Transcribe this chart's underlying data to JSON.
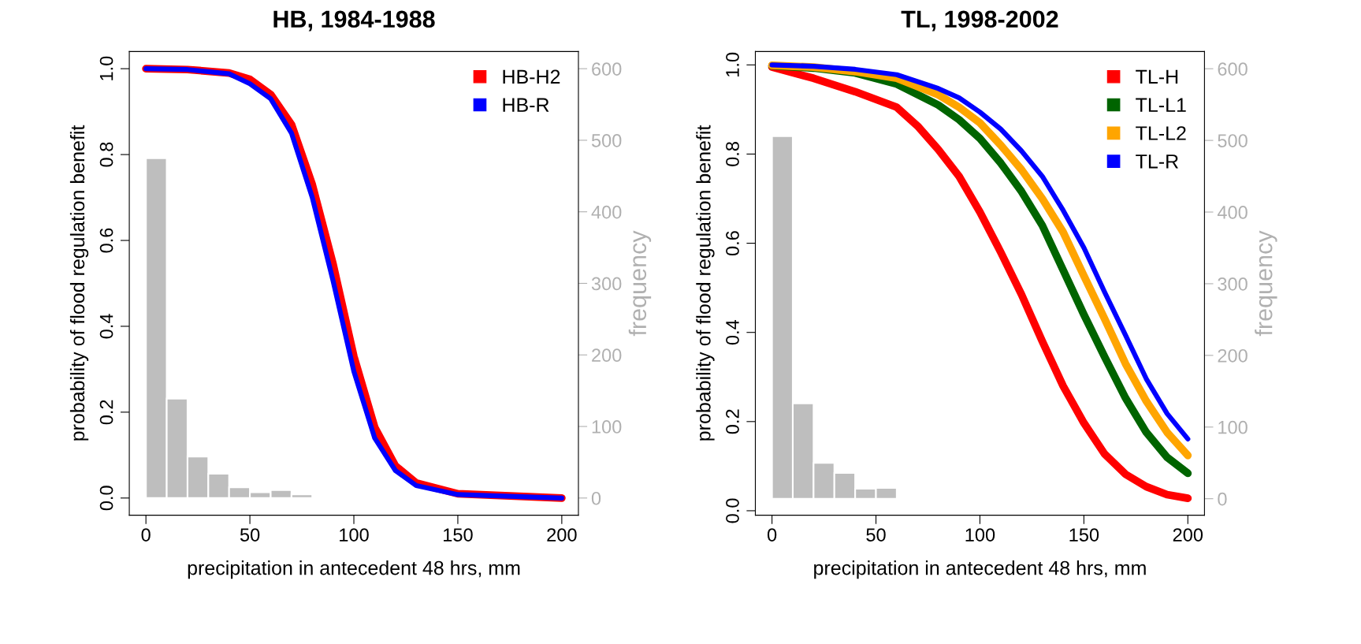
{
  "chart_data": [
    {
      "type": "line",
      "title": "HB, 1984-1988",
      "xlabel": "precipitation in antecedent 48 hrs, mm",
      "ylabel": "probability of flood regulation benefit",
      "y2label": "frequency",
      "xlim": [
        -8,
        208
      ],
      "xticks": [
        0,
        50,
        100,
        150,
        200
      ],
      "ylim": [
        -0.04,
        1.04
      ],
      "yticks": [
        {
          "value": 0,
          "label": "0.0"
        },
        {
          "value": 0.2,
          "label": "0.2"
        },
        {
          "value": 0.4,
          "label": "0.4"
        },
        {
          "value": 0.6,
          "label": "0.6"
        },
        {
          "value": 0.8,
          "label": "0.8"
        },
        {
          "value": 1,
          "label": "1.0"
        }
      ],
      "y2lim": [
        -24,
        624
      ],
      "y2ticks": [
        0,
        100,
        200,
        300,
        400,
        500,
        600
      ],
      "legend": "top right",
      "grid": false,
      "series": [
        {
          "type": "histogram",
          "axis": "y2",
          "color": "#bebebe",
          "bins": [
            0,
            10,
            20,
            30,
            40,
            50,
            60,
            70,
            80
          ],
          "values": [
            475,
            139,
            58,
            34,
            15,
            8,
            11,
            5
          ]
        },
        {
          "name": "HB-H2",
          "color": "#ff0000",
          "x": [
            0,
            20,
            40,
            50,
            60,
            70,
            80,
            90,
            100,
            110,
            120,
            130,
            150,
            200
          ],
          "values": [
            1.0,
            0.998,
            0.99,
            0.975,
            0.94,
            0.87,
            0.73,
            0.545,
            0.33,
            0.165,
            0.075,
            0.035,
            0.01,
            0.0
          ]
        },
        {
          "name": "HB-R",
          "color": "#0000ff",
          "x": [
            0,
            20,
            40,
            50,
            60,
            70,
            80,
            90,
            100,
            110,
            120,
            130,
            150,
            200
          ],
          "values": [
            1.0,
            0.998,
            0.988,
            0.965,
            0.93,
            0.85,
            0.7,
            0.506,
            0.295,
            0.14,
            0.064,
            0.029,
            0.008,
            0.0
          ]
        }
      ]
    },
    {
      "type": "line",
      "title": "TL, 1998-2002",
      "xlabel": "precipitation in antecedent 48 hrs, mm",
      "ylabel": "probability of flood regulation benefit",
      "y2label": "frequency",
      "xlim": [
        -8,
        208
      ],
      "xticks": [
        0,
        50,
        100,
        150,
        200
      ],
      "ylim": [
        -0.01,
        1.03
      ],
      "yticks": [
        {
          "value": 0,
          "label": "0.0"
        },
        {
          "value": 0.2,
          "label": "0.2"
        },
        {
          "value": 0.4,
          "label": "0.4"
        },
        {
          "value": 0.6,
          "label": "0.6"
        },
        {
          "value": 0.8,
          "label": "0.8"
        },
        {
          "value": 1,
          "label": "1.0"
        }
      ],
      "y2lim": [
        -23,
        624
      ],
      "y2ticks": [
        0,
        100,
        200,
        300,
        400,
        500,
        600
      ],
      "legend": "top right",
      "grid": false,
      "series": [
        {
          "type": "histogram",
          "axis": "y2",
          "color": "#bebebe",
          "bins": [
            0,
            10,
            20,
            30,
            40,
            50,
            60
          ],
          "values": [
            506,
            133,
            50,
            36,
            14,
            15
          ]
        },
        {
          "name": "TL-H",
          "color": "#ff0000",
          "x": [
            0,
            20,
            40,
            60,
            70,
            80,
            90,
            100,
            110,
            120,
            130,
            140,
            150,
            160,
            170,
            180,
            190,
            200
          ],
          "values": [
            0.995,
            0.97,
            0.94,
            0.905,
            0.863,
            0.81,
            0.75,
            0.67,
            0.58,
            0.485,
            0.38,
            0.28,
            0.197,
            0.127,
            0.082,
            0.054,
            0.036,
            0.028
          ]
        },
        {
          "name": "TL-L1",
          "color": "#006400",
          "x": [
            0,
            20,
            40,
            60,
            80,
            90,
            100,
            110,
            120,
            130,
            140,
            150,
            160,
            170,
            180,
            190,
            200
          ],
          "values": [
            0.998,
            0.993,
            0.982,
            0.957,
            0.91,
            0.877,
            0.835,
            0.78,
            0.716,
            0.64,
            0.54,
            0.44,
            0.345,
            0.253,
            0.176,
            0.12,
            0.084
          ]
        },
        {
          "name": "TL-L2",
          "color": "#ffa500",
          "x": [
            0,
            20,
            40,
            60,
            80,
            90,
            100,
            110,
            120,
            130,
            140,
            150,
            160,
            170,
            180,
            190,
            200
          ],
          "values": [
            0.999,
            0.995,
            0.985,
            0.97,
            0.933,
            0.905,
            0.87,
            0.82,
            0.765,
            0.7,
            0.625,
            0.527,
            0.43,
            0.33,
            0.246,
            0.176,
            0.124
          ]
        },
        {
          "name": "TL-R",
          "color": "#0000ff",
          "x": [
            0,
            20,
            40,
            60,
            80,
            90,
            100,
            110,
            120,
            130,
            140,
            150,
            160,
            170,
            180,
            190,
            200
          ],
          "values": [
            1.0,
            0.997,
            0.99,
            0.978,
            0.947,
            0.926,
            0.894,
            0.856,
            0.807,
            0.75,
            0.674,
            0.59,
            0.49,
            0.394,
            0.296,
            0.218,
            0.161
          ]
        }
      ]
    }
  ]
}
